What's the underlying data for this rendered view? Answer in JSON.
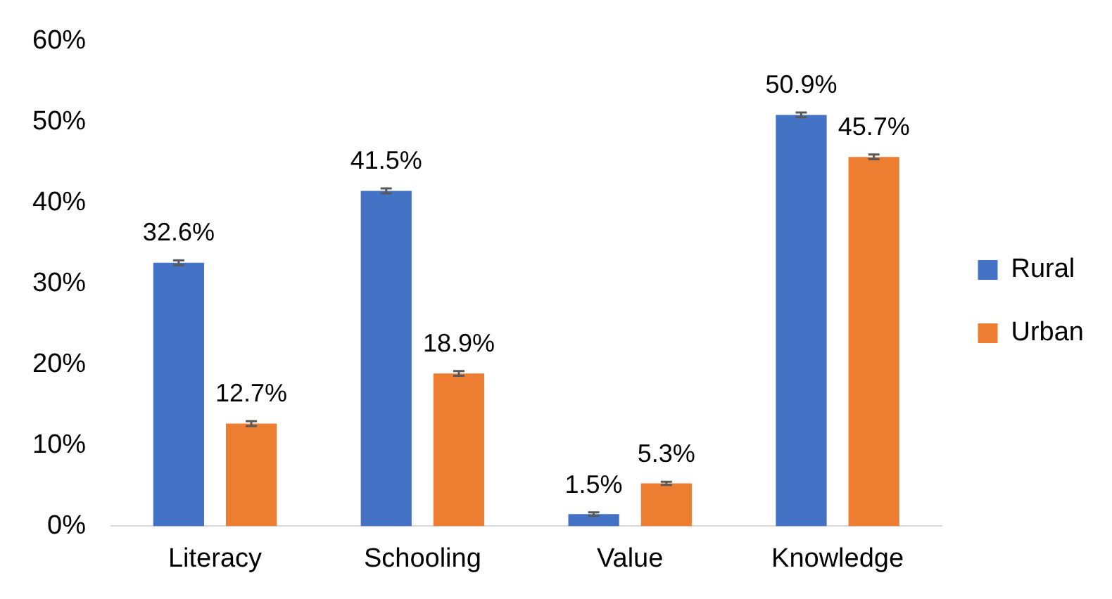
{
  "chart_data": {
    "type": "bar",
    "categories": [
      "Literacy",
      "Schooling",
      "Value",
      "Knowledge"
    ],
    "series": [
      {
        "name": "Rural",
        "color": "#4472c4",
        "values": [
          32.6,
          41.5,
          1.5,
          50.9
        ],
        "errors": [
          0.3,
          0.3,
          0.2,
          0.3
        ],
        "value_labels": [
          "32.6%",
          "41.5%",
          "1.5%",
          "50.9%"
        ]
      },
      {
        "name": "Urban",
        "color": "#ed7d31",
        "values": [
          12.7,
          18.9,
          5.3,
          45.7
        ],
        "errors": [
          0.3,
          0.3,
          0.2,
          0.3
        ],
        "value_labels": [
          "12.7%",
          "18.9%",
          "5.3%",
          "45.7%"
        ]
      }
    ],
    "ylim": [
      0,
      60
    ],
    "yticks": [
      {
        "value": 0,
        "label": "0%"
      },
      {
        "value": 10,
        "label": "10%"
      },
      {
        "value": 20,
        "label": "20%"
      },
      {
        "value": 30,
        "label": "30%"
      },
      {
        "value": 40,
        "label": "40%"
      },
      {
        "value": 50,
        "label": "50%"
      },
      {
        "value": 60,
        "label": "60%"
      }
    ],
    "grid": false,
    "legend": "right"
  }
}
